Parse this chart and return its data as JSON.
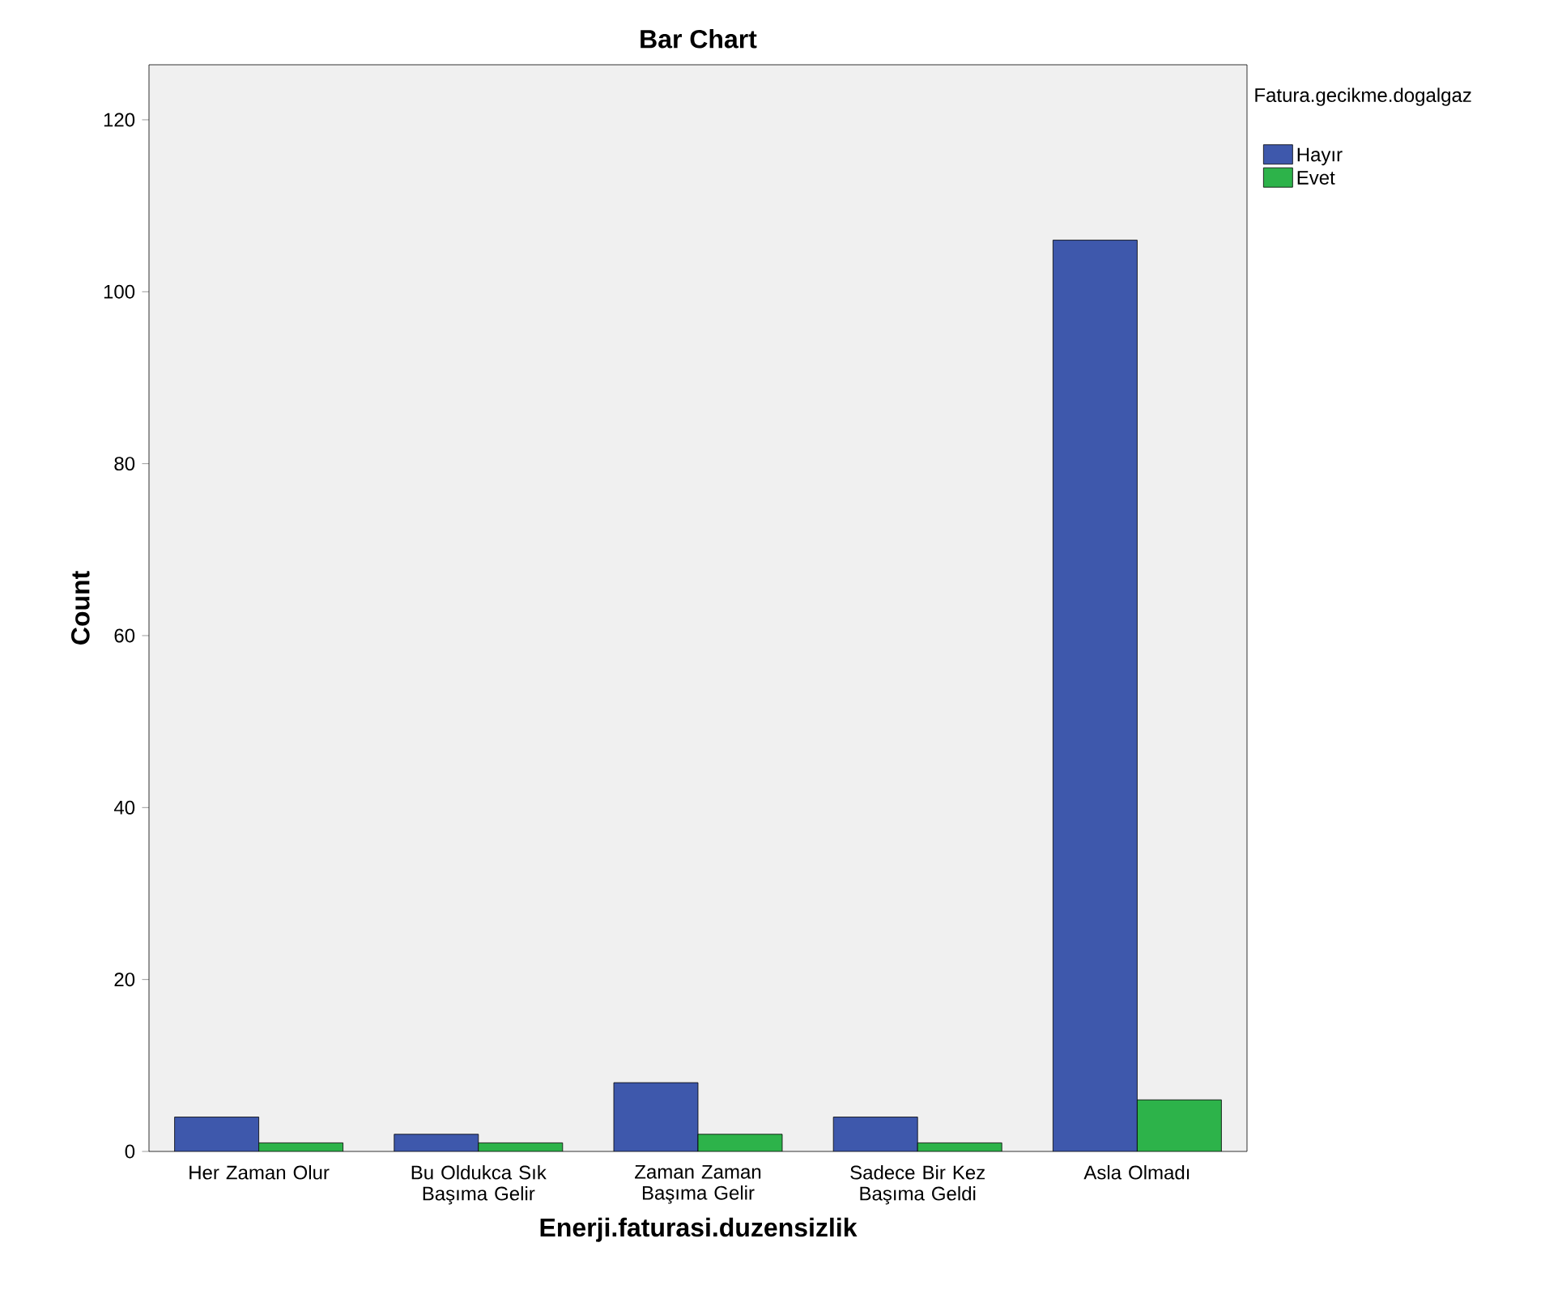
{
  "chart_data": {
    "type": "bar",
    "title": "Bar Chart",
    "xlabel": "Enerji.faturasi.duzensizlik",
    "ylabel": "Count",
    "legend_title": "Fatura.gecikme.dogalgaz",
    "legend": "right",
    "categories": [
      "Her Zaman Olur",
      "Bu Oldukca Sık Başıma Gelir",
      "Zaman Zaman Başıma Gelir",
      "Sadece Bir Kez Başıma Geldi",
      "Asla Olmadı"
    ],
    "series": [
      {
        "name": "Hayır",
        "color": "#3e58ac",
        "values": [
          4,
          2,
          8,
          4,
          106
        ]
      },
      {
        "name": "Evet",
        "color": "#2db34a",
        "values": [
          1,
          1,
          2,
          1,
          6
        ]
      }
    ],
    "ylim": [
      0,
      126.4
    ],
    "yticks": [
      0,
      20,
      40,
      60,
      80,
      100,
      120
    ],
    "grid": false
  }
}
